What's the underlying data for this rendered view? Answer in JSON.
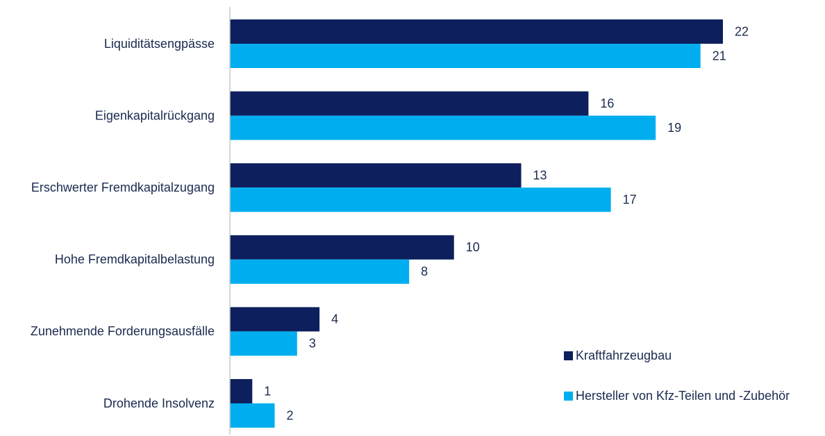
{
  "chart_data": {
    "type": "bar",
    "orientation": "horizontal",
    "categories": [
      "Liquiditätsengpässe",
      "Eigenkapitalrückgang",
      "Erschwerter Fremdkapitalzugang",
      "Hohe Fremdkapitalbelastung",
      "Zunehmende Forderungsausfälle",
      "Drohende Insolvenz"
    ],
    "series": [
      {
        "name": "Kraftfahrzeugbau",
        "color": "#0d1f5c",
        "values": [
          22,
          16,
          13,
          10,
          4,
          1
        ]
      },
      {
        "name": "Hersteller von Kfz-Teilen und -Zubehör",
        "color": "#00aeef",
        "values": [
          21,
          19,
          17,
          8,
          3,
          2
        ]
      }
    ],
    "title": "",
    "xlabel": "",
    "ylabel": "",
    "xlim": [
      0,
      22
    ],
    "grid": false,
    "legend_position": "bottom-right",
    "data_labels": true
  }
}
